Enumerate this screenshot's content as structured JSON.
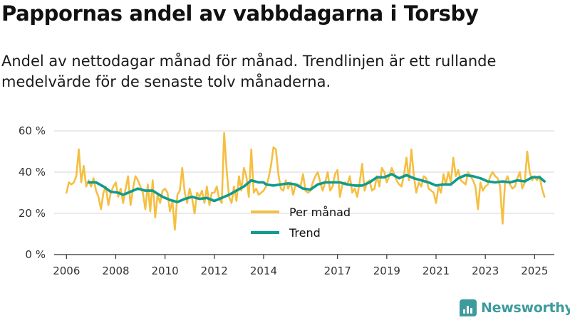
{
  "header": {
    "title": "Pappornas andel av vabbdagarna i Torsby",
    "subtitle": "Andel av nettodagar månad för månad. Trendlinjen är ett rullande medelvärde för de senaste tolv månaderna."
  },
  "branding": {
    "name": "Newsworthy",
    "icon": "bar-chart-icon"
  },
  "colors": {
    "monthly": "#f5bf42",
    "trend": "#0f9b8e",
    "grid": "#dddddd",
    "axis": "#333333"
  },
  "chart_data": {
    "type": "line",
    "title": "Pappornas andel av vabbdagarna i Torsby",
    "subtitle": "Andel av nettodagar månad för månad. Trendlinjen är ett rullande medelvärde för de senaste tolv månaderna.",
    "xlabel": "",
    "ylabel": "",
    "xlim": [
      2005.5,
      2025.8
    ],
    "ylim": [
      0,
      60
    ],
    "grid": true,
    "legend": "bottom-center",
    "x_ticks": [
      2006,
      2008,
      2010,
      2012,
      2014,
      2017,
      2019,
      2021,
      2023,
      2025
    ],
    "x_tick_labels": [
      "2006",
      "2008",
      "2010",
      "2012",
      "2014",
      "2017",
      "2019",
      "2021",
      "2023",
      "2025"
    ],
    "y_ticks": [
      0,
      20,
      40,
      60
    ],
    "y_tick_labels": [
      "0 %",
      "20 %",
      "40 %",
      "60 %"
    ],
    "series": [
      {
        "name": "Per månad",
        "color": "#f5bf42",
        "points": [
          [
            2006.0,
            30
          ],
          [
            2006.1,
            35
          ],
          [
            2006.2,
            34
          ],
          [
            2006.3,
            35
          ],
          [
            2006.4,
            38
          ],
          [
            2006.5,
            51
          ],
          [
            2006.6,
            35
          ],
          [
            2006.7,
            43
          ],
          [
            2006.8,
            33
          ],
          [
            2006.9,
            36
          ],
          [
            2007.0,
            33
          ],
          [
            2007.1,
            37
          ],
          [
            2007.2,
            31
          ],
          [
            2007.3,
            28
          ],
          [
            2007.4,
            22
          ],
          [
            2007.5,
            30
          ],
          [
            2007.6,
            33
          ],
          [
            2007.7,
            24
          ],
          [
            2007.8,
            30
          ],
          [
            2007.9,
            33
          ],
          [
            2008.0,
            35
          ],
          [
            2008.1,
            28
          ],
          [
            2008.2,
            32
          ],
          [
            2008.3,
            25
          ],
          [
            2008.4,
            32
          ],
          [
            2008.5,
            38
          ],
          [
            2008.6,
            24
          ],
          [
            2008.7,
            32
          ],
          [
            2008.8,
            38
          ],
          [
            2008.9,
            36
          ],
          [
            2009.0,
            33
          ],
          [
            2009.1,
            30
          ],
          [
            2009.2,
            22
          ],
          [
            2009.3,
            34
          ],
          [
            2009.4,
            21
          ],
          [
            2009.5,
            36
          ],
          [
            2009.6,
            18
          ],
          [
            2009.7,
            29
          ],
          [
            2009.8,
            25
          ],
          [
            2009.9,
            31
          ],
          [
            2010.0,
            32
          ],
          [
            2010.1,
            30
          ],
          [
            2010.2,
            21
          ],
          [
            2010.3,
            26
          ],
          [
            2010.4,
            12
          ],
          [
            2010.5,
            29
          ],
          [
            2010.6,
            31
          ],
          [
            2010.7,
            42
          ],
          [
            2010.8,
            30
          ],
          [
            2010.9,
            25
          ],
          [
            2011.0,
            32
          ],
          [
            2011.1,
            27
          ],
          [
            2011.2,
            20
          ],
          [
            2011.3,
            30
          ],
          [
            2011.4,
            28
          ],
          [
            2011.5,
            31
          ],
          [
            2011.6,
            25
          ],
          [
            2011.7,
            33
          ],
          [
            2011.8,
            24
          ],
          [
            2011.9,
            30
          ],
          [
            2012.0,
            30
          ],
          [
            2012.1,
            33
          ],
          [
            2012.2,
            27
          ],
          [
            2012.3,
            25
          ],
          [
            2012.4,
            59
          ],
          [
            2012.5,
            41
          ],
          [
            2012.6,
            28
          ],
          [
            2012.7,
            25
          ],
          [
            2012.8,
            33
          ],
          [
            2012.9,
            26
          ],
          [
            2013.0,
            38
          ],
          [
            2013.1,
            31
          ],
          [
            2013.2,
            42
          ],
          [
            2013.3,
            38
          ],
          [
            2013.4,
            28
          ],
          [
            2013.5,
            51
          ],
          [
            2013.6,
            30
          ],
          [
            2013.7,
            32
          ],
          [
            2013.8,
            29
          ],
          [
            2013.9,
            30
          ],
          [
            2014.0,
            31
          ],
          [
            2014.1,
            33
          ],
          [
            2014.2,
            37
          ],
          [
            2014.3,
            43
          ],
          [
            2014.4,
            52
          ],
          [
            2014.5,
            51
          ],
          [
            2014.6,
            39
          ],
          [
            2014.7,
            32
          ],
          [
            2014.8,
            31
          ],
          [
            2014.9,
            36
          ],
          [
            2015.0,
            32
          ],
          [
            2015.1,
            35
          ],
          [
            2015.2,
            29
          ],
          [
            2015.3,
            34
          ],
          [
            2015.4,
            34
          ],
          [
            2015.5,
            33
          ],
          [
            2015.6,
            39
          ],
          [
            2015.7,
            31
          ],
          [
            2015.8,
            30
          ],
          [
            2015.9,
            31
          ],
          [
            2016.0,
            35
          ],
          [
            2016.1,
            38
          ],
          [
            2016.2,
            40
          ],
          [
            2016.3,
            35
          ],
          [
            2016.4,
            31
          ],
          [
            2016.5,
            35
          ],
          [
            2016.6,
            40
          ],
          [
            2016.7,
            31
          ],
          [
            2016.8,
            33
          ],
          [
            2016.9,
            39
          ],
          [
            2017.0,
            41
          ],
          [
            2017.1,
            28
          ],
          [
            2017.2,
            34
          ],
          [
            2017.3,
            35
          ],
          [
            2017.4,
            34
          ],
          [
            2017.5,
            38
          ],
          [
            2017.6,
            30
          ],
          [
            2017.7,
            32
          ],
          [
            2017.8,
            28
          ],
          [
            2017.9,
            35
          ],
          [
            2018.0,
            44
          ],
          [
            2018.1,
            31
          ],
          [
            2018.2,
            35
          ],
          [
            2018.3,
            36
          ],
          [
            2018.4,
            31
          ],
          [
            2018.5,
            32
          ],
          [
            2018.6,
            38
          ],
          [
            2018.7,
            33
          ],
          [
            2018.8,
            42
          ],
          [
            2018.9,
            40
          ],
          [
            2019.0,
            35
          ],
          [
            2019.1,
            38
          ],
          [
            2019.2,
            42
          ],
          [
            2019.3,
            39
          ],
          [
            2019.4,
            36
          ],
          [
            2019.5,
            34
          ],
          [
            2019.6,
            33
          ],
          [
            2019.7,
            39
          ],
          [
            2019.8,
            47
          ],
          [
            2019.9,
            36
          ],
          [
            2020.0,
            51
          ],
          [
            2020.1,
            38
          ],
          [
            2020.2,
            30
          ],
          [
            2020.3,
            35
          ],
          [
            2020.4,
            33
          ],
          [
            2020.5,
            38
          ],
          [
            2020.6,
            37
          ],
          [
            2020.7,
            32
          ],
          [
            2020.8,
            31
          ],
          [
            2020.9,
            30
          ],
          [
            2021.0,
            25
          ],
          [
            2021.1,
            33
          ],
          [
            2021.2,
            30
          ],
          [
            2021.3,
            39
          ],
          [
            2021.4,
            34
          ],
          [
            2021.5,
            40
          ],
          [
            2021.6,
            35
          ],
          [
            2021.7,
            47
          ],
          [
            2021.8,
            38
          ],
          [
            2021.9,
            41
          ],
          [
            2022.0,
            36
          ],
          [
            2022.1,
            35
          ],
          [
            2022.2,
            34
          ],
          [
            2022.3,
            40
          ],
          [
            2022.4,
            38
          ],
          [
            2022.5,
            36
          ],
          [
            2022.6,
            33
          ],
          [
            2022.7,
            22
          ],
          [
            2022.8,
            35
          ],
          [
            2022.9,
            31
          ],
          [
            2023.0,
            33
          ],
          [
            2023.1,
            34
          ],
          [
            2023.2,
            38
          ],
          [
            2023.3,
            40
          ],
          [
            2023.4,
            38
          ],
          [
            2023.5,
            37
          ],
          [
            2023.6,
            33
          ],
          [
            2023.7,
            15
          ],
          [
            2023.8,
            35
          ],
          [
            2023.9,
            38
          ],
          [
            2024.0,
            34
          ],
          [
            2024.1,
            32
          ],
          [
            2024.2,
            33
          ],
          [
            2024.3,
            37
          ],
          [
            2024.4,
            40
          ],
          [
            2024.5,
            32
          ],
          [
            2024.6,
            35
          ],
          [
            2024.7,
            50
          ],
          [
            2024.8,
            40
          ],
          [
            2024.9,
            36
          ],
          [
            2025.0,
            38
          ],
          [
            2025.1,
            36
          ],
          [
            2025.2,
            38
          ],
          [
            2025.3,
            32
          ],
          [
            2025.4,
            28
          ]
        ]
      },
      {
        "name": "Trend",
        "color": "#0f9b8e",
        "points": [
          [
            2006.9,
            35
          ],
          [
            2007.2,
            35
          ],
          [
            2007.5,
            33
          ],
          [
            2007.8,
            30.5
          ],
          [
            2008.1,
            30
          ],
          [
            2008.3,
            29
          ],
          [
            2008.6,
            30.5
          ],
          [
            2008.9,
            32
          ],
          [
            2009.2,
            31
          ],
          [
            2009.5,
            31
          ],
          [
            2009.9,
            28
          ],
          [
            2010.2,
            26.5
          ],
          [
            2010.5,
            25.5
          ],
          [
            2010.8,
            27
          ],
          [
            2011.1,
            28
          ],
          [
            2011.4,
            27
          ],
          [
            2011.7,
            27.5
          ],
          [
            2012.0,
            26
          ],
          [
            2012.3,
            27.5
          ],
          [
            2012.6,
            29
          ],
          [
            2012.9,
            31
          ],
          [
            2013.2,
            33
          ],
          [
            2013.5,
            36
          ],
          [
            2013.8,
            35
          ],
          [
            2014.0,
            35
          ],
          [
            2014.1,
            34
          ],
          [
            2014.4,
            33.5
          ],
          [
            2014.7,
            34
          ],
          [
            2015.0,
            34.5
          ],
          [
            2015.3,
            34
          ],
          [
            2015.6,
            32
          ],
          [
            2015.9,
            31.5
          ],
          [
            2016.2,
            34
          ],
          [
            2016.5,
            35
          ],
          [
            2016.8,
            35
          ],
          [
            2017.1,
            35
          ],
          [
            2017.4,
            34
          ],
          [
            2017.7,
            33.5
          ],
          [
            2018.0,
            33.5
          ],
          [
            2018.3,
            35
          ],
          [
            2018.6,
            37.5
          ],
          [
            2018.9,
            37.5
          ],
          [
            2019.2,
            39
          ],
          [
            2019.5,
            37
          ],
          [
            2019.8,
            38.5
          ],
          [
            2020.1,
            37
          ],
          [
            2020.4,
            36
          ],
          [
            2020.7,
            35
          ],
          [
            2021.0,
            33.5
          ],
          [
            2021.3,
            34
          ],
          [
            2021.6,
            34
          ],
          [
            2021.9,
            37
          ],
          [
            2022.2,
            38.5
          ],
          [
            2022.5,
            38
          ],
          [
            2022.8,
            37
          ],
          [
            2023.1,
            35.5
          ],
          [
            2023.4,
            35
          ],
          [
            2023.7,
            35.5
          ],
          [
            2024.0,
            35
          ],
          [
            2024.3,
            36
          ],
          [
            2024.6,
            35.5
          ],
          [
            2024.9,
            37.5
          ],
          [
            2025.2,
            37.5
          ],
          [
            2025.4,
            35.5
          ]
        ]
      }
    ]
  }
}
